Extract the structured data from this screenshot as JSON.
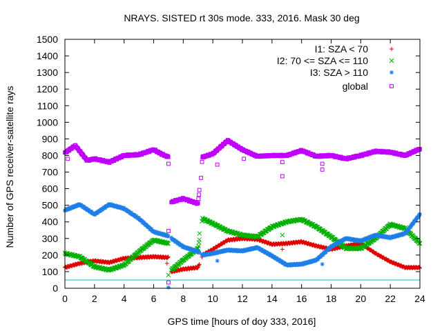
{
  "chart_data": {
    "type": "scatter",
    "title": "NRAYS. SISTED rt 30s mode. 333, 2016. Mask 30 deg",
    "xlabel": "GPS time [hours of doy 333, 2016]",
    "ylabel": "Number of GPS receiver-satellite rays",
    "xlim": [
      0,
      24
    ],
    "ylim": [
      0,
      1500
    ],
    "xticks": [
      0,
      2,
      4,
      6,
      8,
      10,
      12,
      14,
      16,
      18,
      20,
      22,
      24
    ],
    "yticks": [
      0,
      100,
      200,
      300,
      400,
      500,
      600,
      700,
      800,
      900,
      1000,
      1100,
      1200,
      1300,
      1400,
      1500
    ],
    "legend_position": "top-right",
    "reference_line": {
      "y": 50,
      "color": "#00c0c0"
    },
    "gaps": [
      [
        7.0,
        7.2
      ],
      [
        9.1,
        9.25
      ]
    ],
    "series": [
      {
        "name": "I1: SZA < 70",
        "marker": "plus",
        "color": "#e00000",
        "points": [
          [
            0,
            125
          ],
          [
            1,
            150
          ],
          [
            2,
            165
          ],
          [
            3,
            155
          ],
          [
            4,
            180
          ],
          [
            5,
            185
          ],
          [
            6,
            190
          ],
          [
            7,
            185
          ],
          [
            7.2,
            100
          ],
          [
            8,
            115
          ],
          [
            9,
            125
          ],
          [
            9.3,
            200
          ],
          [
            10,
            235
          ],
          [
            11,
            290
          ],
          [
            12,
            300
          ],
          [
            13,
            295
          ],
          [
            14,
            265
          ],
          [
            15,
            270
          ],
          [
            16,
            280
          ],
          [
            17,
            255
          ],
          [
            18,
            235
          ],
          [
            19,
            255
          ],
          [
            20,
            270
          ],
          [
            21,
            210
          ],
          [
            22,
            160
          ],
          [
            23,
            125
          ],
          [
            24,
            125
          ]
        ],
        "outliers": [
          [
            6.9,
            150
          ],
          [
            14.7,
            235
          ]
        ]
      },
      {
        "name": "I2: 70 <= SZA <= 110",
        "marker": "cross",
        "color": "#00b000",
        "points": [
          [
            0,
            210
          ],
          [
            1,
            190
          ],
          [
            2,
            130
          ],
          [
            3,
            110
          ],
          [
            4,
            140
          ],
          [
            5,
            220
          ],
          [
            6,
            290
          ],
          [
            7,
            270
          ],
          [
            7.2,
            110
          ],
          [
            8,
            170
          ],
          [
            9,
            240
          ],
          [
            9.3,
            420
          ],
          [
            10,
            390
          ],
          [
            11,
            345
          ],
          [
            12,
            320
          ],
          [
            13,
            310
          ],
          [
            14,
            370
          ],
          [
            15,
            400
          ],
          [
            16,
            415
          ],
          [
            17,
            370
          ],
          [
            18,
            310
          ],
          [
            19,
            240
          ],
          [
            20,
            240
          ],
          [
            21,
            300
          ],
          [
            22,
            385
          ],
          [
            23,
            360
          ],
          [
            24,
            270
          ]
        ],
        "outliers": [
          [
            9.1,
            330
          ],
          [
            14.7,
            320
          ],
          [
            7,
            80
          ]
        ]
      },
      {
        "name": "I3: SZA > 110",
        "marker": "star",
        "color": "#1e7fe8",
        "points": [
          [
            0,
            470
          ],
          [
            1,
            505
          ],
          [
            2,
            445
          ],
          [
            3,
            505
          ],
          [
            4,
            480
          ],
          [
            5,
            420
          ],
          [
            6,
            340
          ],
          [
            7,
            315
          ],
          [
            7.2,
            300
          ],
          [
            8,
            250
          ],
          [
            9,
            220
          ],
          [
            9.3,
            200
          ],
          [
            10,
            210
          ],
          [
            11,
            230
          ],
          [
            12,
            225
          ],
          [
            13,
            245
          ],
          [
            14,
            195
          ],
          [
            15,
            140
          ],
          [
            16,
            145
          ],
          [
            17,
            170
          ],
          [
            18,
            250
          ],
          [
            19,
            300
          ],
          [
            20,
            285
          ],
          [
            21,
            320
          ],
          [
            22,
            305
          ],
          [
            23,
            330
          ],
          [
            24,
            445
          ]
        ],
        "outliers": [
          [
            10.3,
            165
          ],
          [
            17.4,
            145
          ],
          [
            7,
            5
          ]
        ]
      },
      {
        "name": "global",
        "marker": "square",
        "color": "#c000ff",
        "points": [
          [
            0,
            815
          ],
          [
            0.7,
            860
          ],
          [
            1.5,
            770
          ],
          [
            2,
            780
          ],
          [
            3,
            760
          ],
          [
            4,
            800
          ],
          [
            5,
            805
          ],
          [
            6,
            835
          ],
          [
            6.5,
            810
          ],
          [
            7,
            790
          ],
          [
            7.2,
            520
          ],
          [
            8,
            540
          ],
          [
            9,
            510
          ],
          [
            9.3,
            790
          ],
          [
            10,
            810
          ],
          [
            11,
            890
          ],
          [
            12,
            835
          ],
          [
            13,
            795
          ],
          [
            14,
            800
          ],
          [
            15,
            800
          ],
          [
            16,
            830
          ],
          [
            17,
            795
          ],
          [
            18,
            800
          ],
          [
            19,
            780
          ],
          [
            20,
            800
          ],
          [
            21,
            825
          ],
          [
            22,
            820
          ],
          [
            23,
            800
          ],
          [
            24,
            840
          ]
        ],
        "outliers": [
          [
            7,
            750
          ],
          [
            7,
            345
          ],
          [
            7,
            35
          ],
          [
            9.2,
            665
          ],
          [
            10.3,
            745
          ],
          [
            14.7,
            675
          ],
          [
            14.7,
            760
          ],
          [
            17.4,
            715
          ],
          [
            17.4,
            750
          ],
          [
            12.1,
            780
          ],
          [
            0.2,
            780
          ]
        ]
      }
    ]
  }
}
